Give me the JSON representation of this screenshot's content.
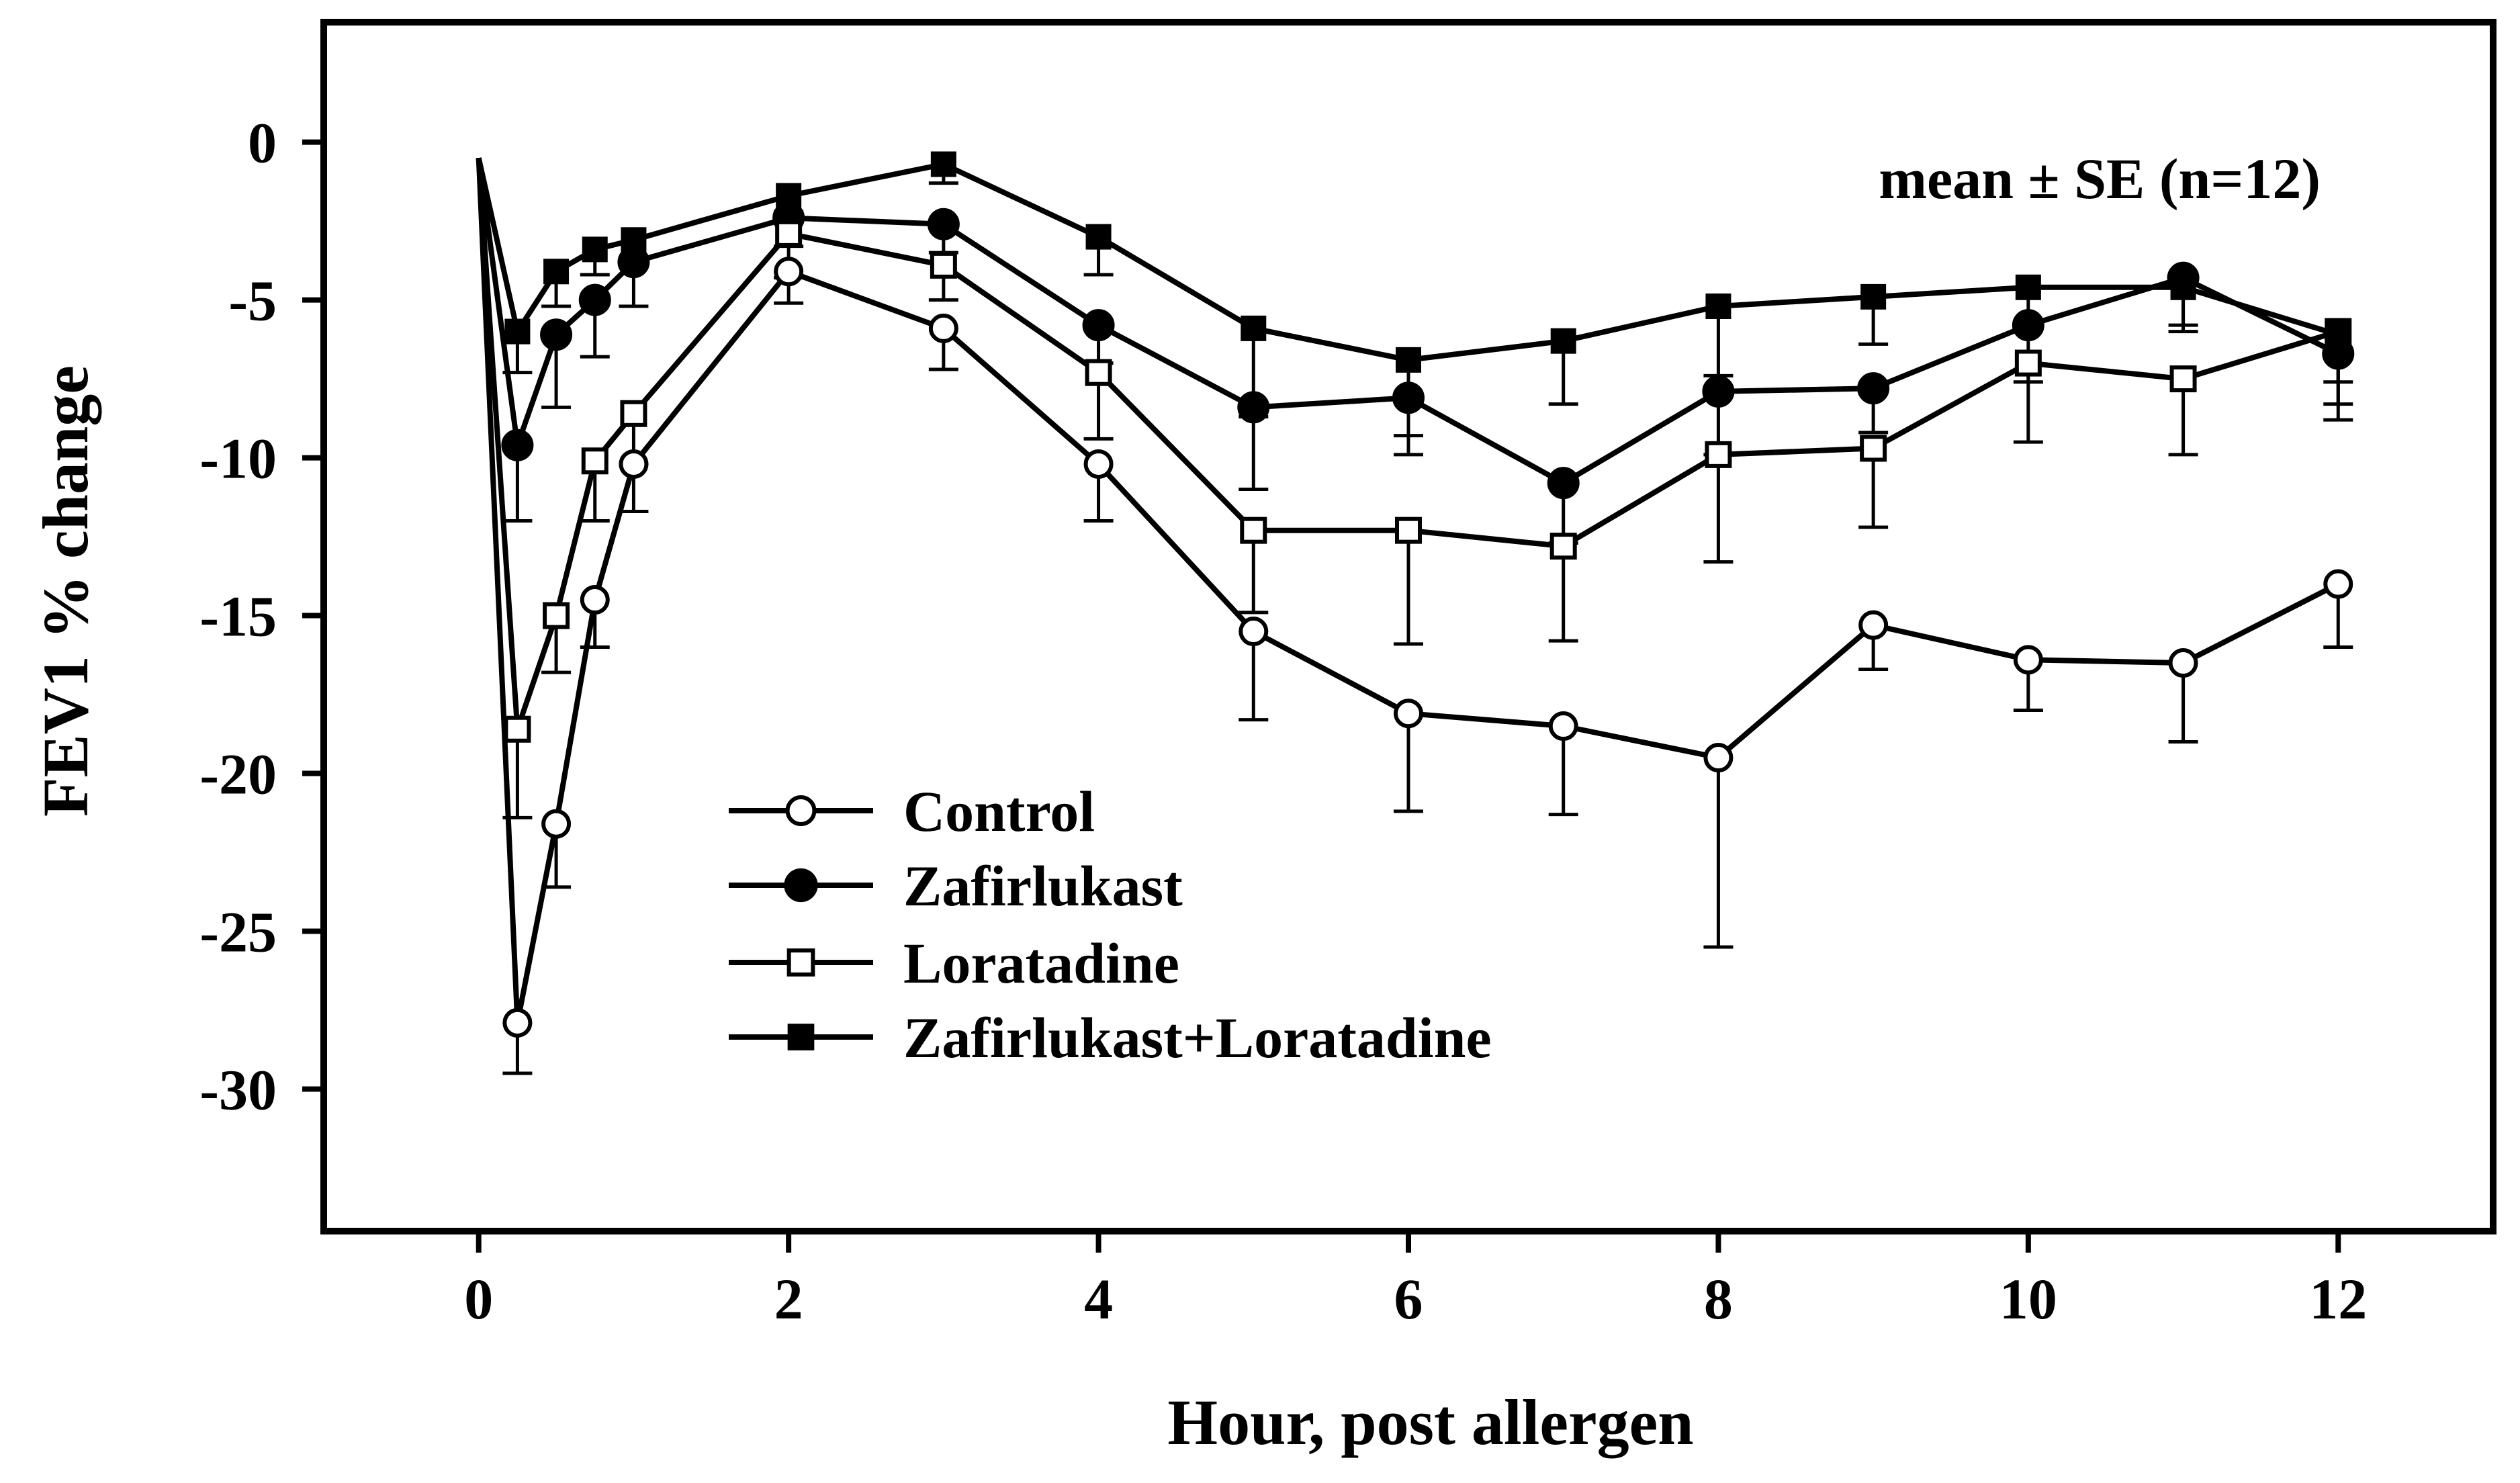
{
  "chart_data": {
    "type": "line",
    "title": "",
    "xlabel": "Hour, post allergen",
    "ylabel": "FEV1 % change",
    "xlim": [
      -1,
      13
    ],
    "ylim": [
      -34.5,
      3.8
    ],
    "xticks": [
      0,
      2,
      4,
      6,
      8,
      10,
      12
    ],
    "xtick_labels": [
      "0",
      "2",
      "4",
      "6",
      "8",
      "10",
      "12"
    ],
    "yticks": [
      0,
      -5,
      -10,
      -15,
      -20,
      -25,
      -30
    ],
    "ytick_labels": [
      "0",
      "-5",
      "-10",
      "-15",
      "-20",
      "-25",
      "-30"
    ],
    "annotation": "mean ± SE (n=12)",
    "legend_position": "lower-left",
    "grid": false,
    "series": [
      {
        "name": "Control",
        "marker": "open-circle",
        "x": [
          0,
          0.25,
          0.5,
          0.75,
          1,
          2,
          3,
          4,
          5,
          6,
          7,
          8,
          9,
          10,
          11,
          12
        ],
        "y": [
          -0.5,
          -27.9,
          -21.6,
          -14.5,
          -10.2,
          -4.1,
          -5.9,
          -10.2,
          -15.5,
          -18.1,
          -18.5,
          -19.5,
          -15.3,
          -16.4,
          -16.5,
          -14.0
        ],
        "se": [
          0,
          1.6,
          2.0,
          1.5,
          1.5,
          1.0,
          1.3,
          1.8,
          2.8,
          3.1,
          2.8,
          6.0,
          1.4,
          1.6,
          2.5,
          2.0
        ]
      },
      {
        "name": "Zafirlukast",
        "marker": "filled-circle",
        "x": [
          0,
          0.25,
          0.5,
          0.75,
          1,
          2,
          3,
          4,
          5,
          6,
          7,
          8,
          9,
          10,
          11,
          12
        ],
        "y": [
          -0.5,
          -9.6,
          -6.1,
          -5.0,
          -3.8,
          -2.4,
          -2.6,
          -5.8,
          -8.4,
          -8.1,
          -10.8,
          -7.9,
          -7.8,
          -5.8,
          -4.3,
          -6.7
        ],
        "se": [
          0,
          2.4,
          2.3,
          1.8,
          1.4,
          0.9,
          0.9,
          1.2,
          2.6,
          1.8,
          1.9,
          2.0,
          1.4,
          1.8,
          1.7,
          1.6
        ]
      },
      {
        "name": "Loratadine",
        "marker": "open-square",
        "x": [
          0,
          0.25,
          0.5,
          0.75,
          1,
          2,
          3,
          4,
          5,
          6,
          7,
          8,
          9,
          10,
          11,
          12
        ],
        "y": [
          -0.5,
          -18.6,
          -15.0,
          -10.1,
          -8.6,
          -2.9,
          -3.9,
          -7.3,
          -12.3,
          -12.3,
          -12.8,
          -9.9,
          -9.7,
          -7.0,
          -7.5,
          -6.0
        ],
        "se": [
          0,
          2.8,
          1.8,
          1.9,
          1.6,
          1.4,
          1.1,
          2.1,
          2.6,
          3.6,
          3.0,
          3.4,
          2.5,
          2.5,
          2.4,
          2.8
        ]
      },
      {
        "name": "Zafirlukast+Loratadine",
        "marker": "filled-square",
        "x": [
          0,
          0.25,
          0.5,
          0.75,
          1,
          2,
          3,
          4,
          5,
          6,
          7,
          8,
          9,
          10,
          11,
          12
        ],
        "y": [
          -0.5,
          -6.0,
          -4.1,
          -3.4,
          -3.1,
          -1.7,
          -0.7,
          -3.0,
          -5.9,
          -6.9,
          -6.3,
          -5.2,
          -4.9,
          -4.6,
          -4.6,
          -6.1
        ],
        "se": [
          0,
          1.3,
          1.1,
          0.8,
          0.8,
          0.5,
          0.6,
          1.2,
          2.8,
          2.4,
          2.0,
          2.2,
          1.5,
          1.3,
          1.2,
          1.5
        ]
      }
    ]
  }
}
